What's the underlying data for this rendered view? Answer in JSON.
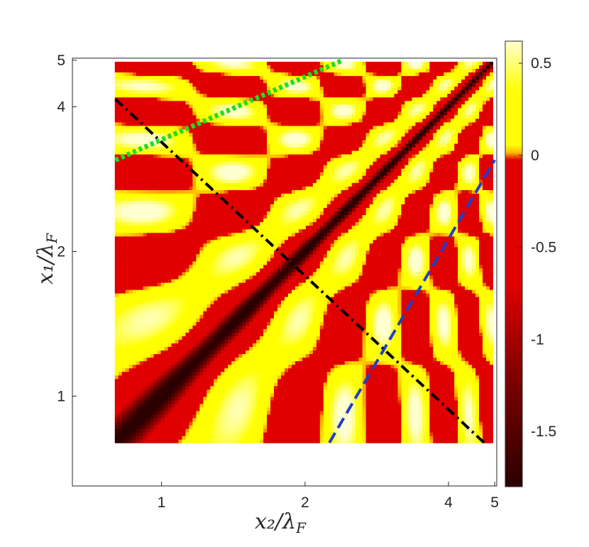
{
  "chart_data": {
    "type": "heatmap",
    "xlabel": "x₂/λ",
    "xlabel_sub": "F",
    "ylabel": "x₁/λ",
    "ylabel_sub": "F",
    "x_tick_values": [
      1,
      2,
      4,
      5
    ],
    "x_tick_labels": [
      "1",
      "2",
      "4",
      "5"
    ],
    "y_tick_values": [
      1,
      2,
      4,
      5
    ],
    "y_tick_labels": [
      "1",
      "2",
      "4",
      "5"
    ],
    "xlim": [
      0.65,
      5.05
    ],
    "ylim": [
      0.65,
      5.05
    ],
    "x_scale": "log",
    "y_scale": "log",
    "colorbar": {
      "range": [
        -1.8,
        0.62
      ],
      "tick_values": [
        0.5,
        0,
        -0.5,
        -1,
        -1.5
      ],
      "tick_labels": [
        "0.5",
        "0",
        "-0.5",
        "-1",
        "-1.5"
      ],
      "colormap": "hot"
    },
    "pattern": "oscillatory map, symmetric about the x1 = x2 diagonal, with a deep dark-red minimum along the diagonal and alternating red/yellow bands",
    "lines": [
      {
        "style": "dashed",
        "color": "#1f3ecf",
        "points": [
          [
            2.25,
            0.8
          ],
          [
            5.0,
            3.1
          ]
        ]
      },
      {
        "style": "dash-dot",
        "color": "#000000",
        "points": [
          [
            0.8,
            4.15
          ],
          [
            4.75,
            0.8
          ]
        ]
      },
      {
        "style": "dotted",
        "color": "#22dd22",
        "points": [
          [
            0.8,
            3.1
          ],
          [
            2.4,
            5.0
          ]
        ]
      }
    ],
    "grid": false,
    "colors": {
      "dark": "#2a0000",
      "red": "#e00000",
      "orange": "#ff9d00",
      "yellow": "#ffff00",
      "light": "#ffffd0"
    }
  }
}
